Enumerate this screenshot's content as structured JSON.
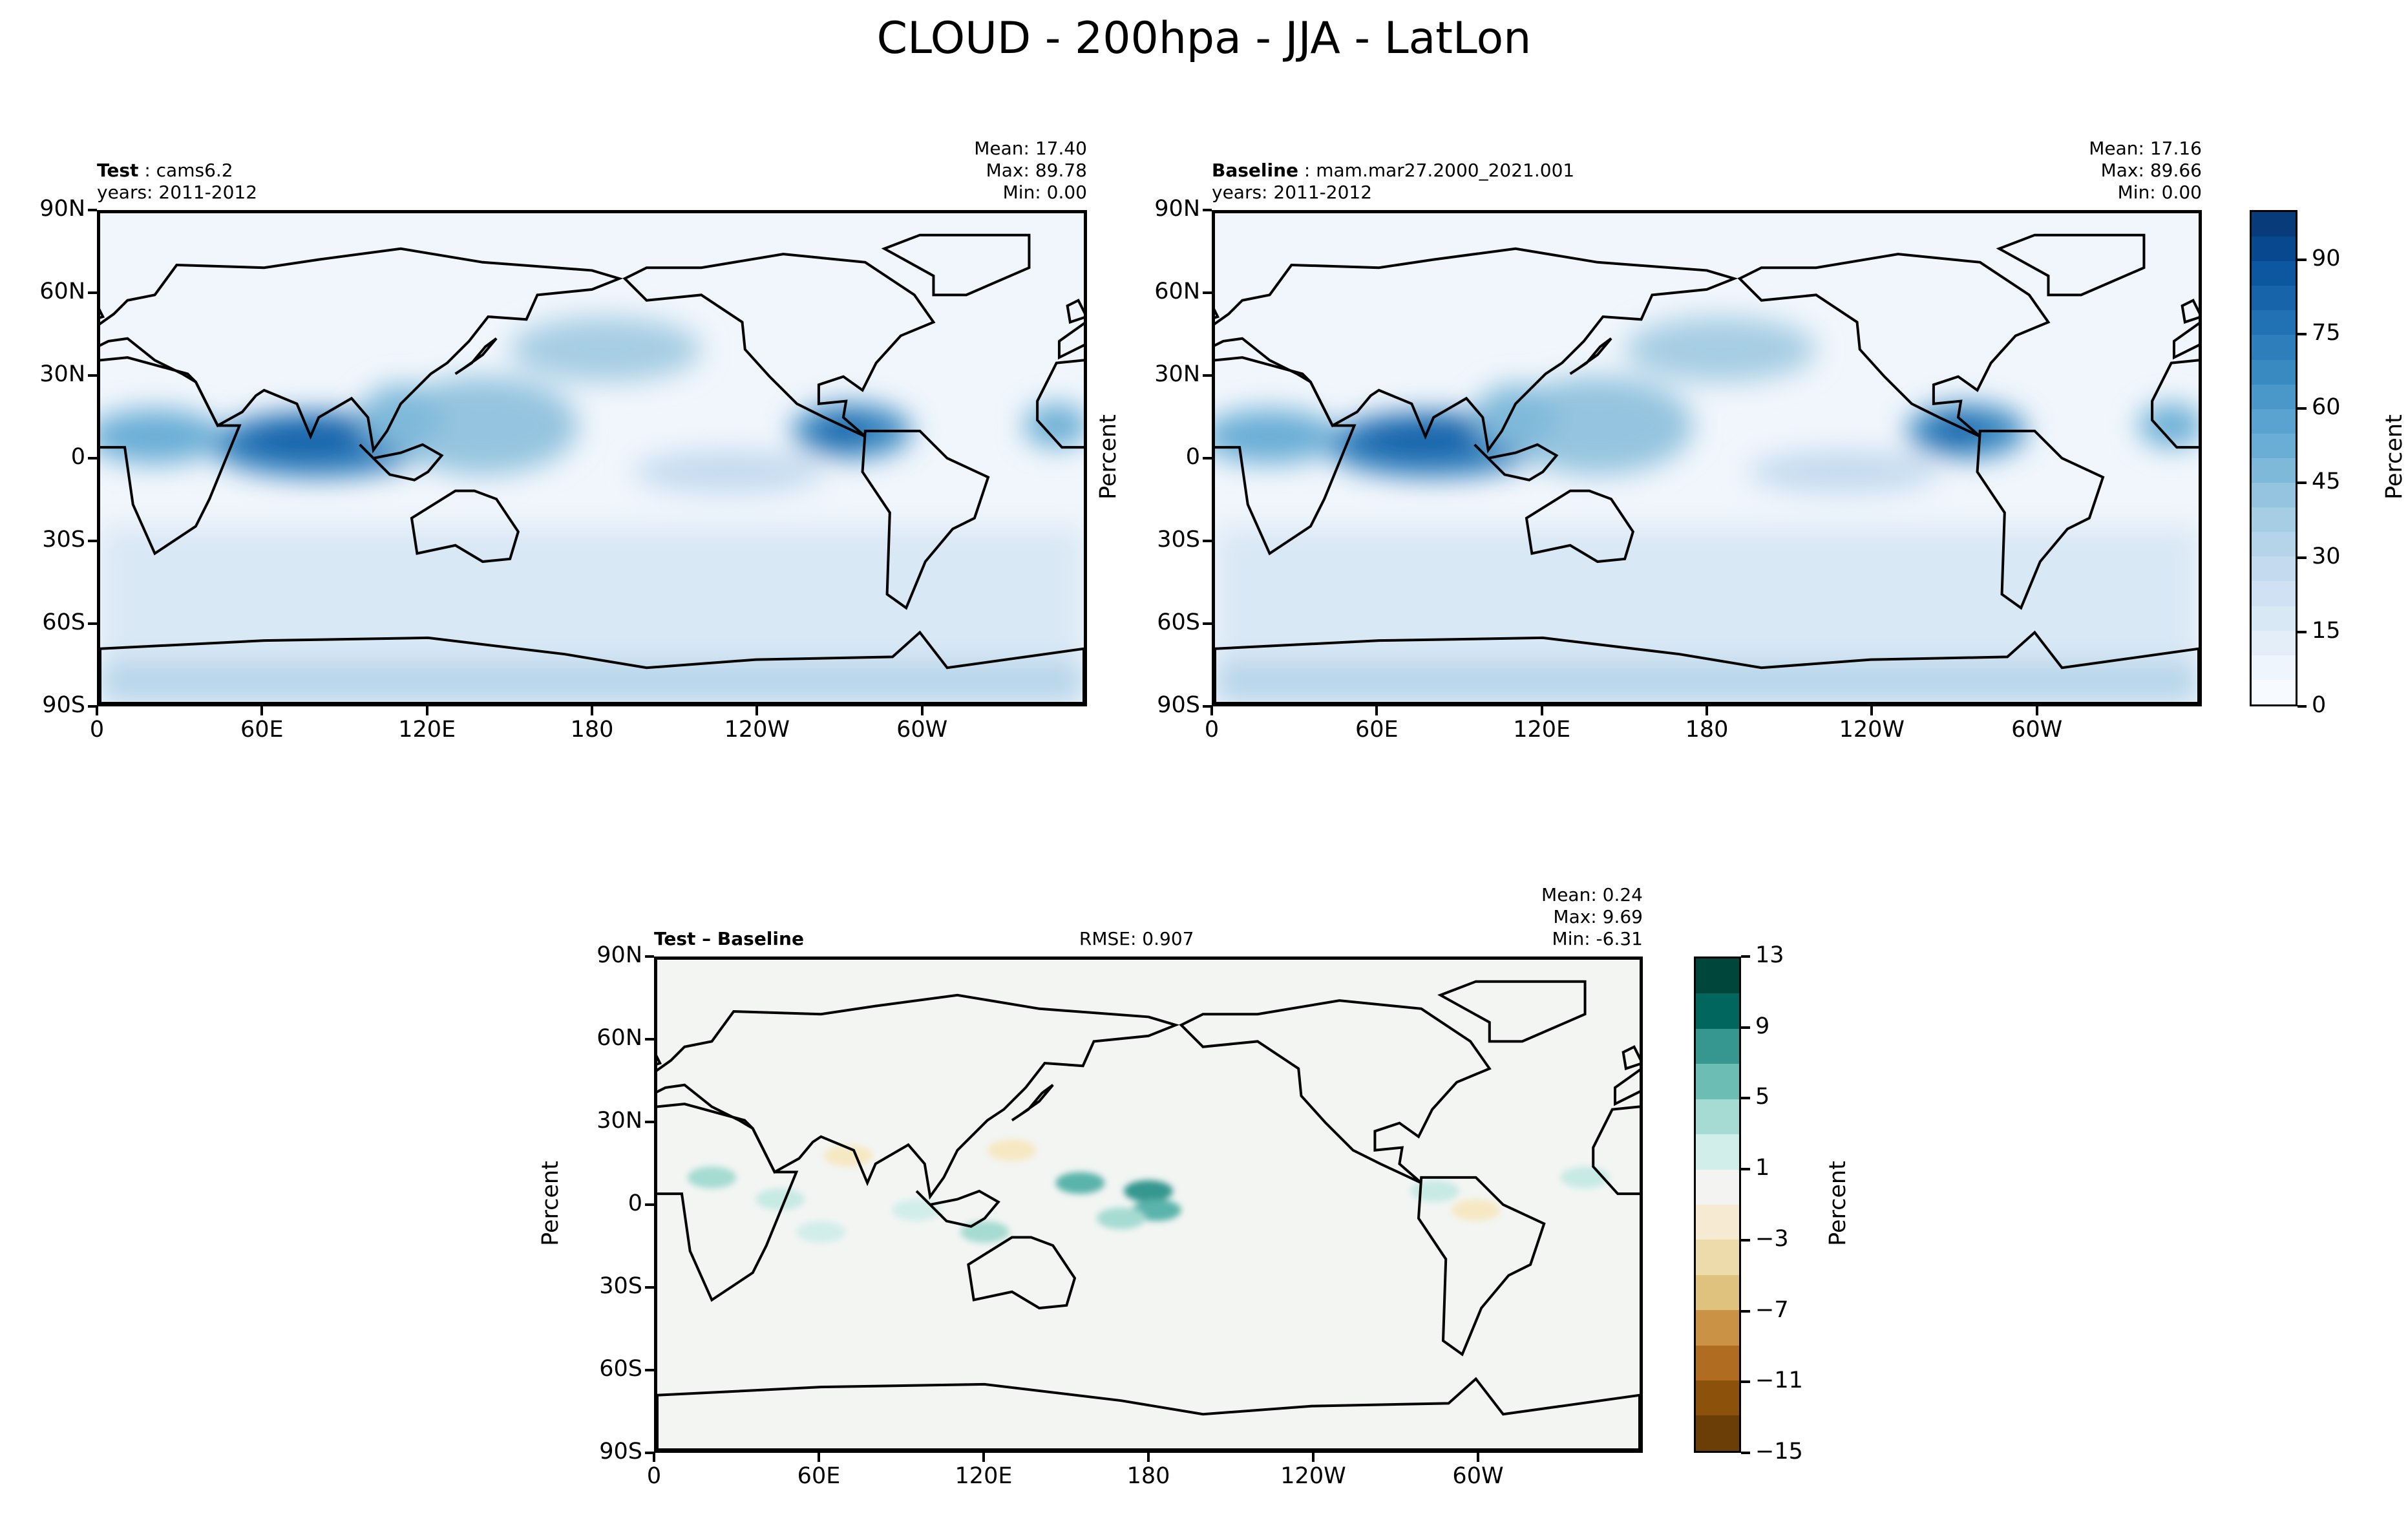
{
  "title": "CLOUD - 200hpa - JJA - LatLon",
  "chart_data": {
    "type": "heatmap",
    "panels": [
      {
        "id": "test",
        "label_bold": "Test",
        "label_rest": " : cams6.2",
        "years": "years: 2011-2012",
        "mean": "Mean: 17.40",
        "max": "Max: 89.78",
        "min": "Min:  0.00",
        "ylabel": ""
      },
      {
        "id": "baseline",
        "label_bold": "Baseline",
        "label_rest": " : mam.mar27.2000_2021.001",
        "years": "years: 2011-2012",
        "mean": "Mean: 17.16",
        "max": "Max: 89.66",
        "min": "Min:  0.00",
        "ylabel": "Percent"
      },
      {
        "id": "diff",
        "label_bold": "Test – Baseline",
        "label_rest": "",
        "rmse": "RMSE: 0.907",
        "mean": "Mean:  0.24",
        "max": "Max:  9.69",
        "min": "Min: -6.31",
        "ylabel": "Percent"
      }
    ],
    "x_ticks": [
      "0",
      "60E",
      "120E",
      "180",
      "120W",
      "60W"
    ],
    "x_tick_lon": [
      0,
      60,
      120,
      180,
      240,
      300
    ],
    "y_ticks": [
      "90N",
      "60N",
      "30N",
      "0",
      "30S",
      "60S",
      "90S"
    ],
    "y_tick_lat": [
      90,
      60,
      30,
      0,
      -30,
      -60,
      -90
    ],
    "colorbar_main": {
      "label": "Percent",
      "range": [
        0,
        100
      ],
      "ticks": [
        "0",
        "15",
        "30",
        "45",
        "60",
        "75",
        "90"
      ],
      "tick_values": [
        0,
        15,
        30,
        45,
        60,
        75,
        90
      ],
      "colors": [
        "#f7fbff",
        "#eef5fc",
        "#e3eef9",
        "#d9e8f5",
        "#cfe1f2",
        "#c4dbef",
        "#b5d4e9",
        "#a6cde3",
        "#94c4df",
        "#7fb9da",
        "#6aaed6",
        "#5aa2cf",
        "#4a97c9",
        "#3a8ac2",
        "#2e7ebc",
        "#2171b5",
        "#1764ab",
        "#0d57a1",
        "#08488e",
        "#083b7a"
      ]
    },
    "colorbar_diff": {
      "label": "Percent",
      "range": [
        -15,
        13
      ],
      "ticks": [
        "13",
        "9",
        "5",
        "1",
        "−3",
        "−7",
        "−11",
        "−15"
      ],
      "tick_values": [
        13,
        9,
        5,
        1,
        -3,
        -7,
        -11,
        -15
      ],
      "colors": [
        "#01463a",
        "#01665e",
        "#35978f",
        "#6cbdb3",
        "#a5dbd2",
        "#d2eeea",
        "#f3f4f2",
        "#f6ead2",
        "#eedbac",
        "#dfc27d",
        "#c99245",
        "#b06d22",
        "#8c510a",
        "#6b3d07"
      ]
    }
  }
}
